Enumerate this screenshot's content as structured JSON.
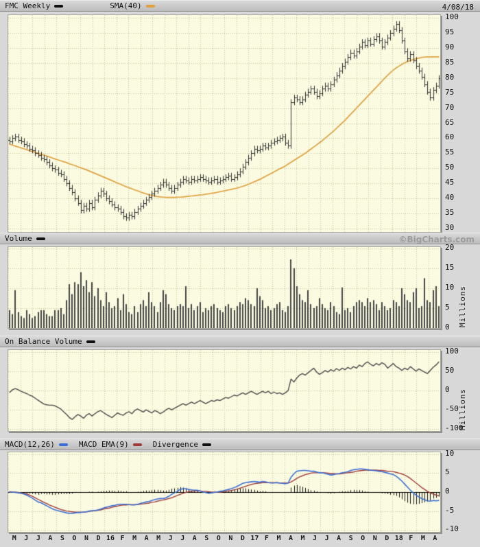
{
  "header": {
    "symbol_label": "FMC Weekly",
    "sma_label": "SMA(40)",
    "date": "4/08/18"
  },
  "watermark": "©BigCharts.com",
  "panel_titles": {
    "volume": "Volume",
    "obv": "On Balance Volume",
    "macd": "MACD(12,26)",
    "macd_ema": "MACD EMA(9)",
    "divergence": "Divergence"
  },
  "colors": {
    "plot_bg": "#fbfbe2",
    "grid": "#c2c29a",
    "bars": "#2e2e2e",
    "sma": "#dfa13d",
    "macd_line": "#3a6fd8",
    "macd_ema_line": "#9e3a38",
    "divergence": "#111111",
    "axis_text": "#111111",
    "watermark": "#9c9c9c"
  },
  "x_labels": [
    "M",
    "J",
    "J",
    "A",
    "S",
    "O",
    "N",
    "D",
    "16",
    "F",
    "M",
    "A",
    "M",
    "J",
    "J",
    "A",
    "S",
    "O",
    "N",
    "D",
    "17",
    "F",
    "M",
    "A",
    "M",
    "J",
    "J",
    "A",
    "S",
    "O",
    "N",
    "D",
    "18",
    "F",
    "M",
    "A"
  ],
  "chart_data": [
    {
      "type": "ohlc-bar",
      "title": "FMC Weekly",
      "overlay": "SMA(40)",
      "ylim": [
        28.8,
        101
      ],
      "yticks": [
        100,
        95,
        90,
        85,
        80,
        75,
        70,
        65,
        60,
        55,
        50,
        45,
        40,
        35,
        30
      ],
      "close": [
        59,
        60,
        60.5,
        59.5,
        59,
        58,
        57.5,
        56.5,
        56,
        55,
        54.5,
        53.5,
        53,
        52,
        51,
        50,
        49.5,
        48.5,
        48,
        46.5,
        45,
        43.5,
        42,
        40,
        38.5,
        36,
        37.5,
        36.5,
        38.5,
        37,
        39.5,
        41,
        42.5,
        41.5,
        40,
        39,
        38,
        37,
        36.5,
        35.5,
        34,
        33.5,
        34.5,
        34,
        35.5,
        36.5,
        37.5,
        38.5,
        39.5,
        40.5,
        41.5,
        42.5,
        43.5,
        44.5,
        45.5,
        44.5,
        43.5,
        42.5,
        43.5,
        44.5,
        45.5,
        46.5,
        46,
        45.5,
        46.5,
        46,
        46.5,
        47,
        46.5,
        46,
        45.5,
        46,
        46.5,
        45.5,
        46,
        46.5,
        47,
        47.5,
        46.5,
        47,
        48,
        49,
        50.5,
        52,
        53.5,
        55,
        56.5,
        56,
        56.5,
        57.5,
        57,
        57.5,
        58.5,
        59,
        59.5,
        60,
        60.5,
        58.5,
        57.5,
        72,
        73.5,
        73,
        72,
        73,
        74.5,
        75.5,
        76.5,
        75.5,
        74,
        75,
        76.5,
        77.5,
        76.5,
        78,
        79.5,
        81,
        82.5,
        84,
        85.5,
        87,
        88.5,
        87.5,
        89,
        90.5,
        92,
        91,
        92.5,
        91.5,
        93,
        94,
        92.5,
        90.5,
        92,
        93.5,
        95,
        96.5,
        98,
        96,
        92.5,
        89,
        86.5,
        88,
        86,
        84,
        82.5,
        80.5,
        78,
        75.5,
        73.5,
        76,
        77.5,
        80
      ],
      "sma": [
        58,
        57.7,
        57.4,
        57.1,
        56.8,
        56.5,
        56.2,
        55.9,
        55.6,
        55.3,
        55,
        54.7,
        54.4,
        54.1,
        53.8,
        53.4,
        53.1,
        52.8,
        52.5,
        52.2,
        51.9,
        51.5,
        51.2,
        50.9,
        50.5,
        50.2,
        49.8,
        49.5,
        49.1,
        48.7,
        48.3,
        47.9,
        47.5,
        47.1,
        46.7,
        46.3,
        45.9,
        45.5,
        45.1,
        44.7,
        44.3,
        43.9,
        43.5,
        43.2,
        42.8,
        42.5,
        42.1,
        41.8,
        41.5,
        41.2,
        41,
        40.8,
        40.6,
        40.5,
        40.4,
        40.3,
        40.3,
        40.3,
        40.3,
        40.4,
        40.4,
        40.5,
        40.6,
        40.7,
        40.8,
        40.9,
        41,
        41.1,
        41.2,
        41.4,
        41.5,
        41.7,
        41.8,
        42,
        42.2,
        42.4,
        42.6,
        42.8,
        43,
        43.2,
        43.4,
        43.7,
        44,
        44.3,
        44.7,
        45.1,
        45.5,
        45.9,
        46.3,
        46.8,
        47.3,
        47.8,
        48.3,
        48.8,
        49.3,
        49.8,
        50.3,
        50.8,
        51.4,
        52,
        52.6,
        53.2,
        53.8,
        54.4,
        55,
        55.7,
        56.4,
        57.1,
        57.8,
        58.5,
        59.2,
        60,
        60.8,
        61.6,
        62.4,
        63.3,
        64.2,
        65.1,
        66,
        67,
        68,
        69,
        70,
        71,
        72,
        73,
        74,
        75,
        76,
        77,
        78,
        79,
        80,
        81,
        81.9,
        82.7,
        83.4,
        84,
        84.6,
        85.1,
        85.5,
        85.9,
        86.2,
        86.5,
        86.7,
        86.9,
        87,
        87.1,
        87.1,
        87.1,
        87.1,
        87.1
      ]
    },
    {
      "type": "bar",
      "title": "Volume",
      "ylabel": "Millions",
      "ylim": [
        0,
        20.3
      ],
      "yticks": [
        20,
        15,
        10,
        5,
        0
      ],
      "values": [
        4.5,
        3.5,
        9.5,
        4,
        3,
        2.5,
        4.5,
        3.5,
        2.5,
        3,
        4,
        4.5,
        4.5,
        3.5,
        3,
        3,
        4.5,
        4.5,
        5,
        3.5,
        7,
        11,
        8.5,
        11.5,
        11,
        14,
        10.5,
        12,
        9,
        11.5,
        8,
        10,
        7,
        5.5,
        9,
        6.5,
        5,
        5.5,
        7.5,
        4.5,
        8.5,
        6,
        4,
        3.5,
        5.5,
        4,
        6,
        7,
        5.5,
        9,
        6.5,
        5.5,
        4,
        6.5,
        9.5,
        8.5,
        6,
        5,
        4.5,
        5.5,
        6,
        5.5,
        10.5,
        5,
        6,
        4.5,
        5.5,
        6.5,
        4,
        5,
        4.5,
        5.5,
        6,
        5,
        4.5,
        4,
        5.5,
        6,
        5,
        4.5,
        5.5,
        6.5,
        6,
        7.5,
        7,
        6,
        5.5,
        10,
        8,
        7,
        5,
        5.5,
        4.5,
        5,
        6,
        6.5,
        4.5,
        4,
        5.5,
        17.2,
        15,
        10.5,
        8.5,
        7,
        6.5,
        9.5,
        6,
        5,
        5.5,
        7.5,
        6,
        5,
        4.5,
        6.5,
        5.5,
        4,
        3.5,
        10.2,
        4.5,
        5,
        4,
        5.5,
        6.5,
        7,
        6.5,
        5.5,
        7.5,
        6.5,
        7,
        6,
        4.5,
        6.5,
        5.5,
        4.5,
        5,
        7,
        6.5,
        5.5,
        10,
        8.5,
        7,
        6.5,
        9,
        10,
        5,
        5.5,
        12.5,
        7,
        6.5,
        9.5,
        10.5,
        5.5
      ]
    },
    {
      "type": "line",
      "title": "On Balance Volume",
      "ylabel": "Millions",
      "ylim": [
        -105,
        105
      ],
      "yticks": [
        100,
        50,
        0,
        -50,
        -100
      ],
      "values": [
        -5,
        2,
        5,
        2,
        -2,
        -5,
        -8,
        -12,
        -15,
        -20,
        -25,
        -30,
        -35,
        -37,
        -38,
        -38,
        -40,
        -44,
        -48,
        -55,
        -62,
        -70,
        -75,
        -68,
        -62,
        -66,
        -72,
        -64,
        -60,
        -66,
        -60,
        -55,
        -52,
        -57,
        -62,
        -66,
        -70,
        -64,
        -58,
        -62,
        -64,
        -58,
        -55,
        -60,
        -52,
        -48,
        -52,
        -56,
        -50,
        -54,
        -58,
        -52,
        -55,
        -60,
        -56,
        -50,
        -46,
        -50,
        -46,
        -42,
        -38,
        -34,
        -38,
        -34,
        -30,
        -34,
        -30,
        -26,
        -30,
        -34,
        -30,
        -26,
        -28,
        -24,
        -26,
        -22,
        -18,
        -20,
        -16,
        -12,
        -14,
        -10,
        -6,
        -10,
        -6,
        -2,
        -6,
        -10,
        -6,
        -2,
        -6,
        -2,
        -8,
        -4,
        -8,
        -6,
        -10,
        -6,
        0,
        30,
        22,
        32,
        40,
        44,
        40,
        46,
        52,
        58,
        48,
        42,
        46,
        52,
        48,
        54,
        50,
        57,
        52,
        58,
        54,
        60,
        56,
        62,
        58,
        66,
        62,
        70,
        74,
        68,
        64,
        70,
        66,
        72,
        68,
        58,
        64,
        70,
        62,
        58,
        52,
        58,
        54,
        62,
        56,
        50,
        56,
        52,
        48,
        44,
        52,
        60,
        66,
        74
      ]
    },
    {
      "type": "line+histogram",
      "title": "MACD(12,26)",
      "ylim": [
        -10.5,
        10.5
      ],
      "yticks": [
        10,
        5,
        0,
        -5,
        -10
      ],
      "series": [
        {
          "name": "MACD(12,26)",
          "values": [
            0,
            0,
            -0.1,
            -0.2,
            -0.3,
            -0.5,
            -0.8,
            -1.2,
            -1.6,
            -2.1,
            -2.6,
            -2.8,
            -3.2,
            -3.6,
            -4,
            -4.4,
            -4.7,
            -4.9,
            -5.1,
            -5.3,
            -5.5,
            -5.6,
            -5.6,
            -5.5,
            -5.4,
            -5.4,
            -5.3,
            -5.2,
            -5,
            -4.9,
            -4.9,
            -4.7,
            -4.5,
            -4.2,
            -4,
            -3.8,
            -3.6,
            -3.5,
            -3.3,
            -3.2,
            -3.2,
            -3.2,
            -3.3,
            -3.4,
            -3.4,
            -3.2,
            -3,
            -2.8,
            -2.6,
            -2.5,
            -2.2,
            -2,
            -1.8,
            -1.7,
            -1.7,
            -1.5,
            -1.1,
            -0.6,
            -0.2,
            0.2,
            0.7,
            0.9,
            0.9,
            0.7,
            0.6,
            0.5,
            0.5,
            0.3,
            0,
            -0.1,
            -0.3,
            -0.2,
            -0.1,
            0,
            0.2,
            0.3,
            0.5,
            0.7,
            0.9,
            1.2,
            1.5,
            1.9,
            2.3,
            2.5,
            2.6,
            2.7,
            2.8,
            2.7,
            2.6,
            2.8,
            2.7,
            2.5,
            2.4,
            2.4,
            2.5,
            2.4,
            2.3,
            2.2,
            2.4,
            3.9,
            4.8,
            5.5,
            5.6,
            5.7,
            5.7,
            5.6,
            5.5,
            5.5,
            5.3,
            5.1,
            5.1,
            4.9,
            4.7,
            4.5,
            4.6,
            4.8,
            4.9,
            5.1,
            5.2,
            5.4,
            5.7,
            5.9,
            6,
            6.1,
            6.1,
            6,
            5.9,
            5.8,
            5.7,
            5.6,
            5.5,
            5.4,
            5.2,
            5,
            4.8,
            4.6,
            4.2,
            3.6,
            2.9,
            2.1,
            1.3,
            0.5,
            -0.2,
            -0.8,
            -1.3,
            -1.7,
            -2,
            -2.3,
            -2.4,
            -2.2,
            -2.3,
            -2.2
          ]
        },
        {
          "name": "MACD EMA(9)",
          "values": [
            0.1,
            0,
            0,
            -0.1,
            -0.2,
            -0.3,
            -0.5,
            -0.8,
            -1.1,
            -1.5,
            -1.9,
            -2.3,
            -2.7,
            -3,
            -3.4,
            -3.7,
            -4,
            -4.3,
            -4.6,
            -4.8,
            -5,
            -5.1,
            -5.2,
            -5.3,
            -5.3,
            -5.3,
            -5.3,
            -5.2,
            -5.1,
            -5,
            -4.9,
            -4.8,
            -4.7,
            -4.5,
            -4.3,
            -4.2,
            -4,
            -3.8,
            -3.7,
            -3.5,
            -3.4,
            -3.4,
            -3.3,
            -3.3,
            -3.3,
            -3.3,
            -3.2,
            -3.1,
            -3,
            -2.9,
            -2.7,
            -2.6,
            -2.4,
            -2.2,
            -2.1,
            -1.9,
            -1.7,
            -1.5,
            -1.2,
            -0.9,
            -0.6,
            -0.3,
            -0.1,
            0.1,
            0.2,
            0.3,
            0.3,
            0.3,
            0.2,
            0.2,
            0.1,
            0,
            0,
            0,
            0,
            0.1,
            0.2,
            0.3,
            0.4,
            0.6,
            0.8,
            1,
            1.3,
            1.5,
            1.8,
            2,
            2.2,
            2.3,
            2.4,
            2.5,
            2.5,
            2.5,
            2.5,
            2.5,
            2.5,
            2.4,
            2.4,
            2.4,
            2.4,
            2.7,
            3.1,
            3.6,
            4,
            4.3,
            4.6,
            4.8,
            5,
            5.1,
            5.1,
            5.1,
            5.1,
            5.1,
            5,
            4.9,
            4.9,
            4.8,
            4.8,
            4.9,
            5,
            5.1,
            5.2,
            5.3,
            5.5,
            5.6,
            5.7,
            5.8,
            5.8,
            5.8,
            5.8,
            5.8,
            5.7,
            5.7,
            5.6,
            5.5,
            5.5,
            5.4,
            5.2,
            5,
            4.8,
            4.5,
            4.1,
            3.6,
            3,
            2.4,
            1.8,
            1.2,
            0.7,
            0.2,
            -0.2,
            -0.5,
            -0.8,
            -1
          ]
        },
        {
          "name": "Divergence",
          "derived": "MACD(12,26) minus MACD EMA(9)"
        }
      ]
    }
  ]
}
